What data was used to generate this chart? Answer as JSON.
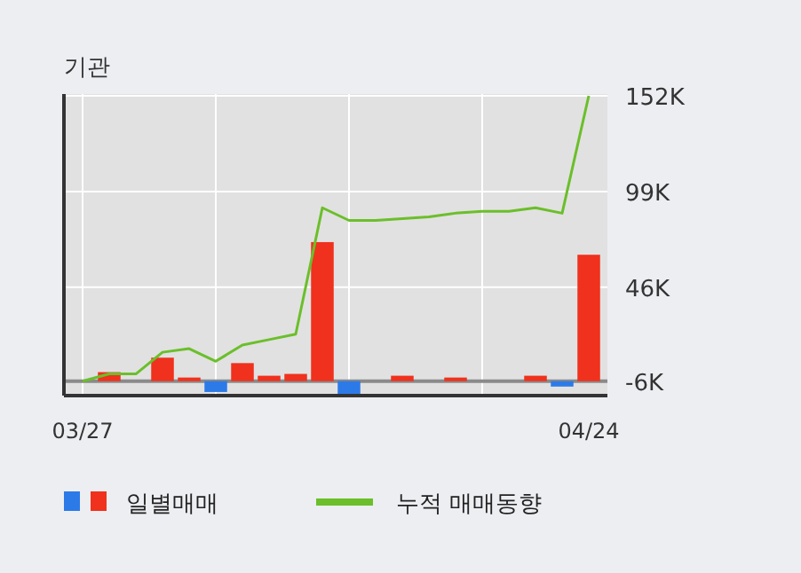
{
  "chart_data": {
    "type": "bar",
    "title": "기관",
    "categories": [
      "03/27",
      null,
      null,
      null,
      null,
      null,
      null,
      null,
      null,
      null,
      null,
      null,
      null,
      null,
      null,
      null,
      null,
      null,
      null,
      "04/24"
    ],
    "series": [
      {
        "name": "일별매매",
        "colors": [
          "#f0311d",
          "#f0311d",
          "#f0311d",
          "#f0311d",
          "#f0311d",
          "#2c7ae8",
          "#f0311d",
          "#f0311d",
          "#f0311d",
          "#f0311d",
          "#2c7ae8",
          "#f0311d",
          "#f0311d",
          "#f0311d",
          "#f0311d",
          "#f0311d",
          "#f0311d",
          "#f0311d",
          "#2c7ae8",
          "#f0311d"
        ],
        "base": [
          null,
          -6000,
          null,
          -6000,
          -6000,
          -6000,
          -6000,
          -6000,
          -6000,
          -6000,
          -6000,
          null,
          -6000,
          null,
          -6000,
          null,
          null,
          -6000,
          -6000,
          -6000
        ],
        "values": [
          null,
          5000,
          null,
          13000,
          2000,
          -6000,
          10000,
          3000,
          4000,
          77000,
          -7000,
          null,
          3000,
          null,
          2000,
          null,
          null,
          3000,
          -3000,
          70000
        ]
      },
      {
        "name": "누적 매매동향",
        "type": "line",
        "color": "#6bbf2a",
        "values": [
          -6000,
          -2000,
          -2000,
          10000,
          12000,
          5000,
          14000,
          17000,
          20000,
          90000,
          83000,
          83000,
          84000,
          85000,
          87000,
          88000,
          88000,
          90000,
          87000,
          152000
        ]
      }
    ],
    "ylim": [
      -14000,
      153000
    ],
    "yticks": [
      {
        "value": -6000,
        "label": "-6K"
      },
      {
        "value": 46000,
        "label": "46K"
      },
      {
        "value": 99000,
        "label": "99K"
      },
      {
        "value": 152000,
        "label": "152K"
      }
    ],
    "ref_lines": [
      {
        "axis": "y",
        "value": -6000,
        "color": "#8a8a8a"
      }
    ],
    "grid": true,
    "legend": "bottom"
  }
}
